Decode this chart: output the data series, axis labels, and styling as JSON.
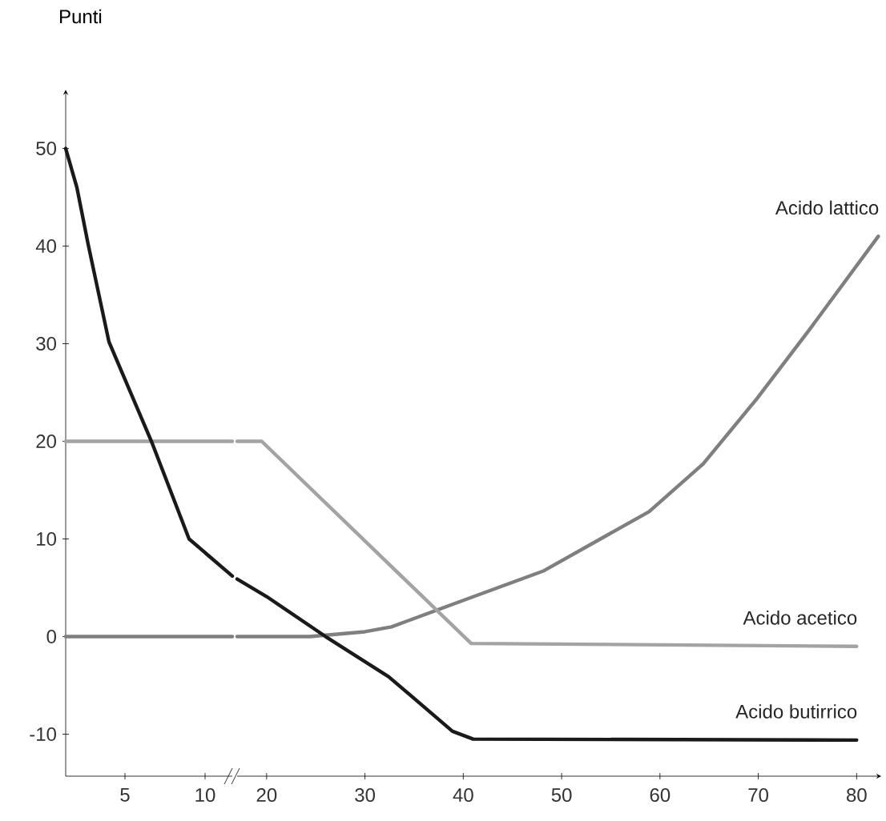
{
  "chart_data": [
    {
      "type": "line",
      "ylabel": "Punti",
      "xlim": [
        1.3,
        11.7
      ],
      "xticks": [
        5,
        10
      ],
      "ylim": [
        -14.3,
        56
      ],
      "yticks": [
        -10,
        0,
        10,
        20,
        30,
        40,
        50
      ],
      "series": [
        {
          "color": "#7f7f7f",
          "x": [
            1.3,
            11.7
          ],
          "values": [
            0,
            0
          ]
        },
        {
          "color": "#a3a3a3",
          "x": [
            1.3,
            11.7
          ],
          "values": [
            20,
            20
          ]
        },
        {
          "color": "#1a1a1a",
          "x": [
            1.3,
            2,
            2.7,
            4,
            6.7,
            9,
            11.7
          ],
          "values": [
            50,
            46,
            40.2,
            30.2,
            19.8,
            10,
            6.2
          ]
        }
      ]
    },
    {
      "type": "line",
      "xlim": [
        17,
        82.5
      ],
      "xticks": [
        20,
        30,
        40,
        50,
        60,
        70,
        80
      ],
      "ylim": [
        -14.3,
        50
      ],
      "yticks": [
        -10,
        0,
        10,
        20,
        30,
        40,
        50
      ],
      "tick_labels": "x",
      "series": [
        {
          "name": "Acido lattico",
          "color": "#7f7f7f",
          "x": [
            17,
            24.4,
            30,
            32.7,
            38.9,
            48.1,
            58.9,
            64.4,
            69.8,
            75.1,
            82.2
          ],
          "values": [
            0,
            0,
            0.5,
            1.0,
            3.3,
            6.7,
            12.8,
            17.7,
            24.3,
            31.3,
            41
          ]
        },
        {
          "name": "Acido acetico",
          "color": "#a3a3a3",
          "x": [
            17,
            19.5,
            40.8,
            80
          ],
          "values": [
            20,
            20,
            -0.7,
            -1.0
          ]
        },
        {
          "name": "Acido butirrico",
          "color": "#1a1a1a",
          "x": [
            17,
            20,
            26,
            32.4,
            38.9,
            41,
            80
          ],
          "values": [
            5.9,
            4.1,
            0,
            -4.1,
            -9.7,
            -10.5,
            -10.6
          ]
        }
      ]
    }
  ]
}
